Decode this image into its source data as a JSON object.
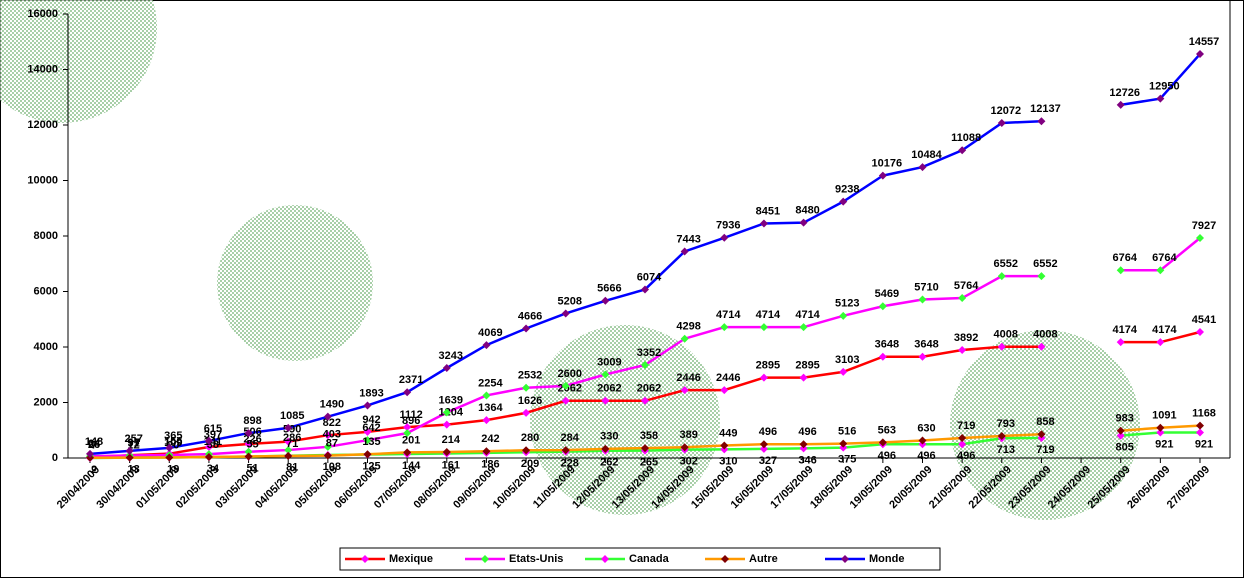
{
  "chart_data": {
    "type": "line",
    "categories": [
      "29/04/2009",
      "30/04/2009",
      "01/05/2009",
      "02/05/2009",
      "03/05/2009",
      "04/05/2009",
      "05/05/2009",
      "06/05/2009",
      "07/05/2009",
      "08/05/2009",
      "09/05/2009",
      "10/05/2009",
      "11/05/2009",
      "12/05/2009",
      "13/05/2009",
      "14/05/2009",
      "15/05/2009",
      "16/05/2009",
      "17/05/2009",
      "18/05/2009",
      "19/05/2009",
      "20/05/2009",
      "21/05/2009",
      "22/05/2009",
      "23/05/2009",
      "24/05/2009",
      "25/05/2009",
      "26/05/2009",
      "27/05/2009"
    ],
    "series": [
      {
        "name": "Mexique",
        "color": "#ff0000",
        "marker_color": "#ff00ff",
        "values": [
          26,
          97,
          156,
          397,
          506,
          590,
          822,
          942,
          1112,
          1204,
          1364,
          1626,
          2062,
          2062,
          2062,
          2446,
          2446,
          2895,
          2895,
          3103,
          3648,
          3648,
          3892,
          4008,
          4008,
          null,
          4174,
          4174,
          4541
        ]
      },
      {
        "name": "Etats-Unis",
        "color": "#ff00ff",
        "marker_color": "#33ff33",
        "values": [
          64,
          91,
          109,
          141,
          226,
          286,
          403,
          642,
          896,
          1639,
          2254,
          2532,
          2600,
          3009,
          3352,
          4298,
          4714,
          4714,
          4714,
          5123,
          5469,
          5710,
          5764,
          6552,
          6552,
          null,
          6764,
          6764,
          7927
        ]
      },
      {
        "name": "Canada",
        "color": "#33ff33",
        "marker_color": "#ff00ff",
        "values": [
          2,
          13,
          19,
          34,
          51,
          81,
          108,
          125,
          144,
          161,
          186,
          209,
          228,
          262,
          265,
          302,
          310,
          327,
          346,
          375,
          496,
          496,
          496,
          713,
          719,
          null,
          805,
          921,
          921
        ]
      },
      {
        "name": "Autre",
        "color": "#ff9900",
        "marker_color": "#800000",
        "values": [
          7,
          12,
          20,
          38,
          55,
          71,
          87,
          135,
          201,
          214,
          242,
          280,
          284,
          330,
          358,
          389,
          449,
          496,
          496,
          516,
          563,
          630,
          719,
          793,
          858,
          null,
          983,
          1091,
          1168
        ]
      },
      {
        "name": "Monde",
        "color": "#0000ff",
        "marker_color": "#800080",
        "values": [
          148,
          257,
          365,
          615,
          898,
          1085,
          1490,
          1893,
          2371,
          3243,
          4069,
          4666,
          5208,
          5666,
          6074,
          7443,
          7936,
          8451,
          8480,
          9238,
          10176,
          10484,
          11088,
          12072,
          12137,
          null,
          12726,
          12950,
          14557
        ]
      }
    ],
    "ylim": [
      0,
      16000
    ],
    "yticks": [
      0,
      2000,
      4000,
      6000,
      8000,
      10000,
      12000,
      14000,
      16000
    ],
    "legend": "bottom"
  }
}
